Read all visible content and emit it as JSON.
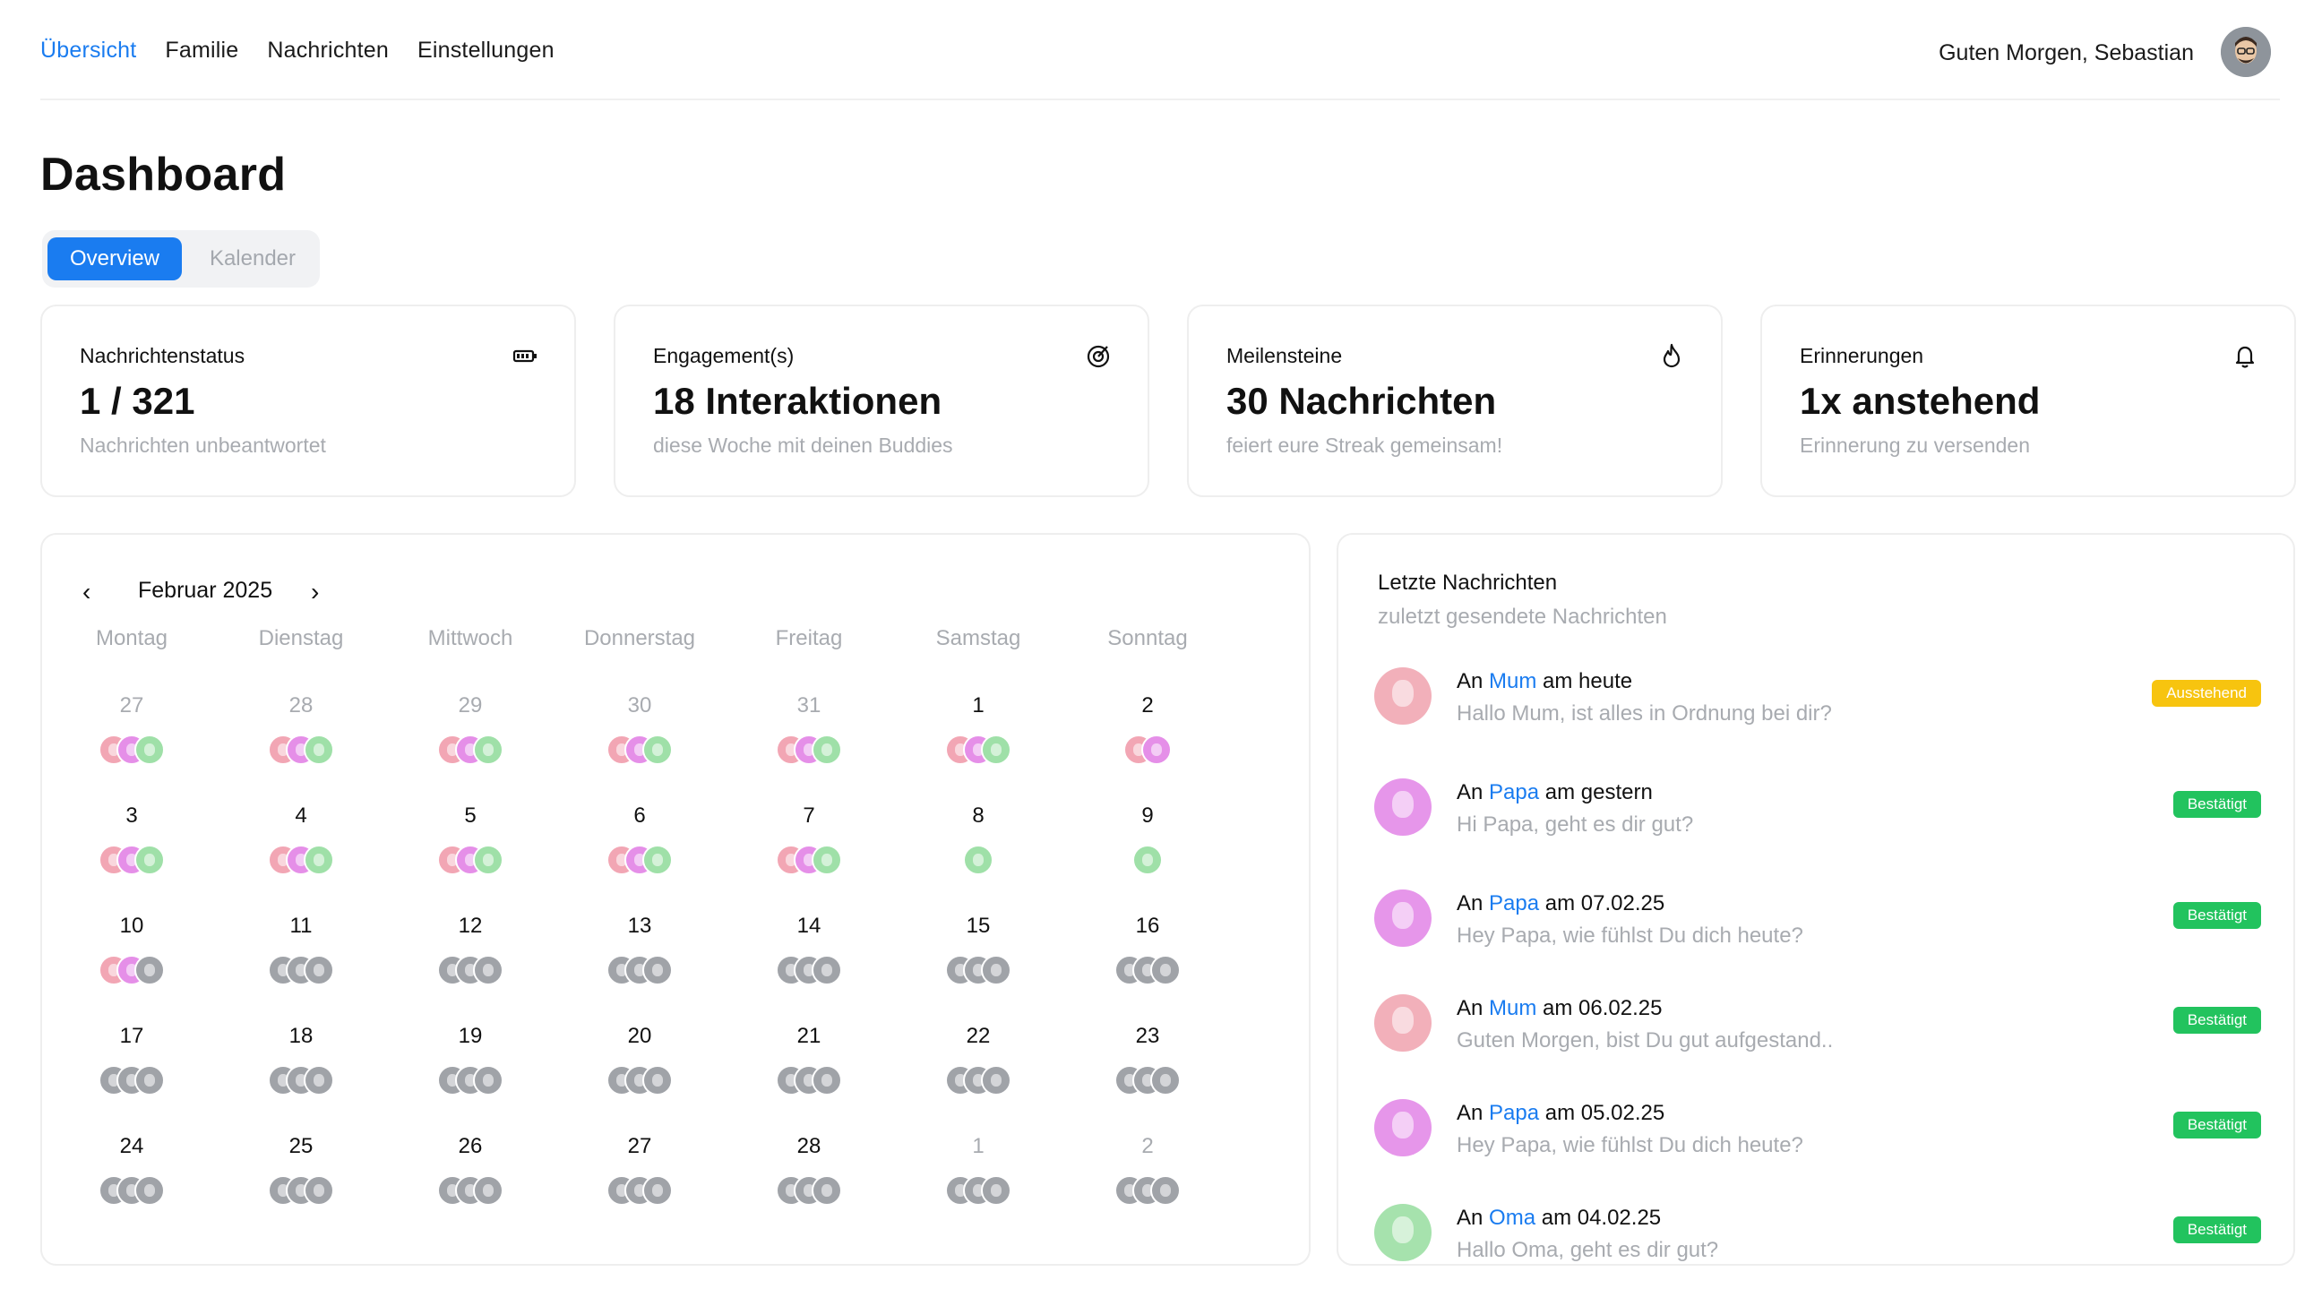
{
  "nav": {
    "links": [
      "Übersicht",
      "Familie",
      "Nachrichten",
      "Einstellungen"
    ],
    "greeting": "Guten Morgen, Sebastian"
  },
  "page_title": "Dashboard",
  "tabs": {
    "overview": "Overview",
    "calendar": "Kalender"
  },
  "cards": [
    {
      "label": "Nachrichtenstatus",
      "value": "1 / 321",
      "sub": "Nachrichten unbeantwortet",
      "icon": "battery-icon"
    },
    {
      "label": "Engagement(s)",
      "value": "18 Interaktionen",
      "sub": "diese Woche mit deinen Buddies",
      "icon": "target-icon"
    },
    {
      "label": "Meilensteine",
      "value": "30 Nachrichten",
      "sub": "feiert eure Streak gemeinsam!",
      "icon": "flame-icon"
    },
    {
      "label": "Erinnerungen",
      "value": "1x anstehend",
      "sub": "Erinnerung zu versenden",
      "icon": "bell-icon"
    }
  ],
  "calendar": {
    "prev": "‹",
    "next": "›",
    "month": "Februar 2025",
    "weekdays": [
      "Montag",
      "Dienstag",
      "Mittwoch",
      "Donnerstag",
      "Freitag",
      "Samstag",
      "Sonntag"
    ],
    "weeks": [
      [
        {
          "d": "27",
          "m": true,
          "a": [
            "pink",
            "purple",
            "green"
          ]
        },
        {
          "d": "28",
          "m": true,
          "a": [
            "pink",
            "purple",
            "green"
          ]
        },
        {
          "d": "29",
          "m": true,
          "a": [
            "pink",
            "purple",
            "green"
          ]
        },
        {
          "d": "30",
          "m": true,
          "a": [
            "pink",
            "purple",
            "green"
          ]
        },
        {
          "d": "31",
          "m": true,
          "a": [
            "pink",
            "purple",
            "green"
          ]
        },
        {
          "d": "1",
          "m": false,
          "a": [
            "pink",
            "purple",
            "green"
          ]
        },
        {
          "d": "2",
          "m": false,
          "a": [
            "pink",
            "purple"
          ]
        }
      ],
      [
        {
          "d": "3",
          "m": false,
          "a": [
            "pink",
            "purple",
            "green"
          ]
        },
        {
          "d": "4",
          "m": false,
          "a": [
            "pink",
            "purple",
            "green"
          ]
        },
        {
          "d": "5",
          "m": false,
          "a": [
            "pink",
            "purple",
            "green"
          ]
        },
        {
          "d": "6",
          "m": false,
          "a": [
            "pink",
            "purple",
            "green"
          ]
        },
        {
          "d": "7",
          "m": false,
          "a": [
            "pink",
            "purple",
            "green"
          ]
        },
        {
          "d": "8",
          "m": false,
          "a": [
            "green"
          ]
        },
        {
          "d": "9",
          "m": false,
          "a": [
            "green"
          ]
        }
      ],
      [
        {
          "d": "10",
          "m": false,
          "a": [
            "pink",
            "purple",
            "gray"
          ]
        },
        {
          "d": "11",
          "m": false,
          "a": [
            "gray",
            "gray",
            "gray"
          ]
        },
        {
          "d": "12",
          "m": false,
          "a": [
            "gray",
            "gray",
            "gray"
          ]
        },
        {
          "d": "13",
          "m": false,
          "a": [
            "gray",
            "gray",
            "gray"
          ]
        },
        {
          "d": "14",
          "m": false,
          "a": [
            "gray",
            "gray",
            "gray"
          ]
        },
        {
          "d": "15",
          "m": false,
          "a": [
            "gray",
            "gray",
            "gray"
          ]
        },
        {
          "d": "16",
          "m": false,
          "a": [
            "gray",
            "gray",
            "gray"
          ]
        }
      ],
      [
        {
          "d": "17",
          "m": false,
          "a": [
            "gray",
            "gray",
            "gray"
          ]
        },
        {
          "d": "18",
          "m": false,
          "a": [
            "gray",
            "gray",
            "gray"
          ]
        },
        {
          "d": "19",
          "m": false,
          "a": [
            "gray",
            "gray",
            "gray"
          ]
        },
        {
          "d": "20",
          "m": false,
          "a": [
            "gray",
            "gray",
            "gray"
          ]
        },
        {
          "d": "21",
          "m": false,
          "a": [
            "gray",
            "gray",
            "gray"
          ]
        },
        {
          "d": "22",
          "m": false,
          "a": [
            "gray",
            "gray",
            "gray"
          ]
        },
        {
          "d": "23",
          "m": false,
          "a": [
            "gray",
            "gray",
            "gray"
          ]
        }
      ],
      [
        {
          "d": "24",
          "m": false,
          "a": [
            "gray",
            "gray",
            "gray"
          ]
        },
        {
          "d": "25",
          "m": false,
          "a": [
            "gray",
            "gray",
            "gray"
          ]
        },
        {
          "d": "26",
          "m": false,
          "a": [
            "gray",
            "gray",
            "gray"
          ]
        },
        {
          "d": "27",
          "m": false,
          "a": [
            "gray",
            "gray",
            "gray"
          ]
        },
        {
          "d": "28",
          "m": false,
          "a": [
            "gray",
            "gray",
            "gray"
          ]
        },
        {
          "d": "1",
          "m": true,
          "a": [
            "gray",
            "gray",
            "gray"
          ]
        },
        {
          "d": "2",
          "m": true,
          "a": [
            "gray",
            "gray",
            "gray"
          ]
        }
      ]
    ]
  },
  "messages": {
    "title": "Letzte Nachrichten",
    "subtitle": "zuletzt gesendete Nachrichten",
    "items": [
      {
        "prefix": "An ",
        "who": "Mum",
        "when": " am heute",
        "text": "Hallo Mum, ist alles in Ordnung bei dir?",
        "status": "Ausstehend",
        "state": "pending",
        "avatar": "pink"
      },
      {
        "prefix": "An ",
        "who": "Papa",
        "when": " am gestern",
        "text": "Hi Papa, geht es dir gut?",
        "status": "Bestätigt",
        "state": "ok",
        "avatar": "purple"
      },
      {
        "prefix": "An ",
        "who": "Papa",
        "when": " am 07.02.25",
        "text": "Hey Papa, wie fühlst Du dich heute?",
        "status": "Bestätigt",
        "state": "ok",
        "avatar": "purple"
      },
      {
        "prefix": "An ",
        "who": "Mum",
        "when": " am 06.02.25",
        "text": "Guten Morgen, bist Du gut aufgestand..",
        "status": "Bestätigt",
        "state": "ok",
        "avatar": "pink"
      },
      {
        "prefix": "An ",
        "who": "Papa",
        "when": " am 05.02.25",
        "text": "Hey Papa, wie fühlst Du dich heute?",
        "status": "Bestätigt",
        "state": "ok",
        "avatar": "purple"
      },
      {
        "prefix": "An ",
        "who": "Oma",
        "when": " am 04.02.25",
        "text": "Hallo Oma, geht es dir gut?",
        "status": "Bestätigt",
        "state": "ok",
        "avatar": "green"
      }
    ]
  }
}
